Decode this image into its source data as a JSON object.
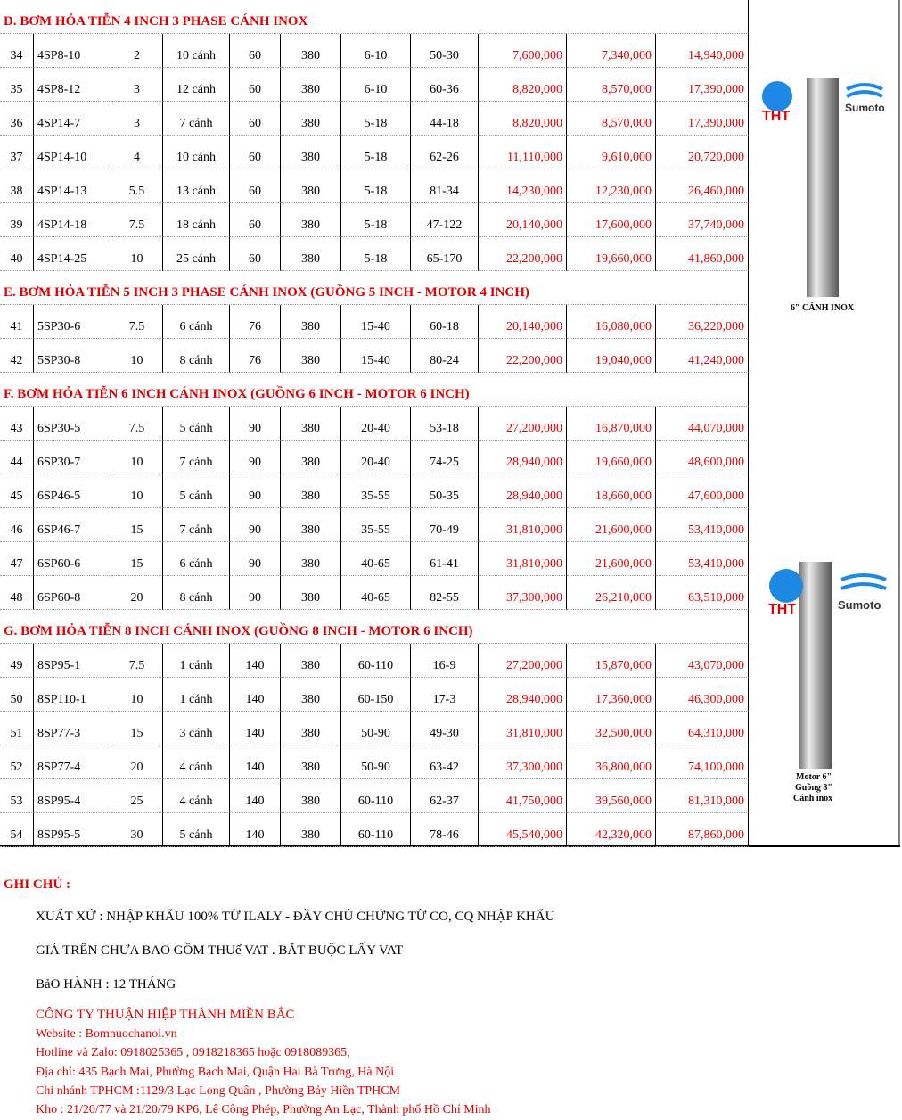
{
  "sections": [
    {
      "title": "D. BƠM HỎA TIỄN 4 INCH 3 PHASE CÁNH INOX",
      "rows": [
        [
          "34",
          "4SP8-10",
          "2",
          "10 cánh",
          "60",
          "380",
          "6-10",
          "50-30",
          "7,600,000",
          "7,340,000",
          "14,940,000"
        ],
        [
          "35",
          "4SP8-12",
          "3",
          "12 cánh",
          "60",
          "380",
          "6-10",
          "60-36",
          "8,820,000",
          "8,570,000",
          "17,390,000"
        ],
        [
          "36",
          "4SP14-7",
          "3",
          "7 cánh",
          "60",
          "380",
          "5-18",
          "44-18",
          "8,820,000",
          "8,570,000",
          "17,390,000"
        ],
        [
          "37",
          "4SP14-10",
          "4",
          "10 cánh",
          "60",
          "380",
          "5-18",
          "62-26",
          "11,110,000",
          "9,610,000",
          "20,720,000"
        ],
        [
          "38",
          "4SP14-13",
          "5.5",
          "13 cánh",
          "60",
          "380",
          "5-18",
          "81-34",
          "14,230,000",
          "12,230,000",
          "26,460,000"
        ],
        [
          "39",
          "4SP14-18",
          "7.5",
          "18 cánh",
          "60",
          "380",
          "5-18",
          "47-122",
          "20,140,000",
          "17,600,000",
          "37,740,000"
        ],
        [
          "40",
          "4SP14-25",
          "10",
          "25 cánh",
          "60",
          "380",
          "5-18",
          "65-170",
          "22,200,000",
          "19,660,000",
          "41,860,000"
        ]
      ]
    },
    {
      "title": "E. BƠM HỎA TIỄN 5 INCH 3 PHASE CÁNH INOX (GUỒNG 5 INCH - MOTOR 4 INCH)",
      "rows": [
        [
          "41",
          "5SP30-6",
          "7.5",
          "6 cánh",
          "76",
          "380",
          "15-40",
          "60-18",
          "20,140,000",
          "16,080,000",
          "36,220,000"
        ],
        [
          "42",
          "5SP30-8",
          "10",
          "8 cánh",
          "76",
          "380",
          "15-40",
          "80-24",
          "22,200,000",
          "19,040,000",
          "41,240,000"
        ]
      ]
    },
    {
      "title": "F. BƠM HỎA TIỄN 6 INCH CÁNH INOX (GUỒNG 6 INCH - MOTOR 6 INCH)",
      "rows": [
        [
          "43",
          "6SP30-5",
          "7.5",
          "5 cánh",
          "90",
          "380",
          "20-40",
          "53-18",
          "27,200,000",
          "16,870,000",
          "44,070,000"
        ],
        [
          "44",
          "6SP30-7",
          "10",
          "7 cánh",
          "90",
          "380",
          "20-40",
          "74-25",
          "28,940,000",
          "19,660,000",
          "48,600,000"
        ],
        [
          "45",
          "6SP46-5",
          "10",
          "5 cánh",
          "90",
          "380",
          "35-55",
          "50-35",
          "28,940,000",
          "18,660,000",
          "47,600,000"
        ],
        [
          "46",
          "6SP46-7",
          "15",
          "7 cánh",
          "90",
          "380",
          "35-55",
          "70-49",
          "31,810,000",
          "21,600,000",
          "53,410,000"
        ],
        [
          "47",
          "6SP60-6",
          "15",
          "6 cánh",
          "90",
          "380",
          "40-65",
          "61-41",
          "31,810,000",
          "21,600,000",
          "53,410,000"
        ],
        [
          "48",
          "6SP60-8",
          "20",
          "8 cánh",
          "90",
          "380",
          "40-65",
          "82-55",
          "37,300,000",
          "26,210,000",
          "63,510,000"
        ]
      ]
    },
    {
      "title": "G. BƠM HỎA TIỄN 8 INCH CÁNH INOX (GUỒNG 8 INCH - MOTOR 6 INCH)",
      "rows": [
        [
          "49",
          "8SP95-1",
          "7.5",
          "1 cánh",
          "140",
          "380",
          "60-110",
          "16-9",
          "27,200,000",
          "15,870,000",
          "43,070,000"
        ],
        [
          "50",
          "8SP110-1",
          "10",
          "1 cánh",
          "140",
          "380",
          "60-150",
          "17-3",
          "28,940,000",
          "17,360,000",
          "46,300,000"
        ],
        [
          "51",
          "8SP77-3",
          "15",
          "3 cánh",
          "140",
          "380",
          "50-90",
          "49-30",
          "31,810,000",
          "32,500,000",
          "64,310,000"
        ],
        [
          "52",
          "8SP77-4",
          "20",
          "4 cánh",
          "140",
          "380",
          "50-90",
          "63-42",
          "37,300,000",
          "36,800,000",
          "74,100,000"
        ],
        [
          "53",
          "8SP95-4",
          "25",
          "4 cánh",
          "140",
          "380",
          "60-110",
          "62-37",
          "41,750,000",
          "39,560,000",
          "81,310,000"
        ],
        [
          "54",
          "8SP95-5",
          "30",
          "5 cánh",
          "140",
          "380",
          "60-110",
          "78-46",
          "45,540,000",
          "42,320,000",
          "87,860,000"
        ]
      ]
    }
  ],
  "images": [
    {
      "brand1": "THT",
      "brand2": "Sumoto",
      "caption": [
        "6\" CÁNH INOX"
      ]
    },
    {
      "brand1": "THT",
      "brand2": "Sumoto",
      "caption": [
        "Motor 6\"",
        "Guồng 8\"",
        "Cánh inox"
      ]
    }
  ],
  "notes": {
    "heading": "GHI CHÚ :",
    "lines": [
      "XUẤT XỨ : NHẬP KHẨU 100% TỪ ILALY - ĐẦY CHỦ CHỨNG TỪ CO, CQ NHẬP KHẨU",
      "GIÁ TRÊN CHƯA BAO GỒM THUế VAT  .  BẮT BUỘC LẤY VAT",
      "BảO HÀNH : 12 THÁNG"
    ],
    "company": "CÔNG TY THUẬN HIỆP THÀNH MIỀN BẮC",
    "contacts": [
      "Website : Bomnuochanoi.vn",
      " Hotline và Zalo: 0918025365 , 0918218365 hoặc 0918089365,",
      "Địa chỉ: 435 Bạch Mai, Phường Bạch Mai, Quận Hai Bà Trưng, Hà Nội",
      "Chi nhánh TPHCM :1129/3 Lạc Long Quân , Phường Bảy Hiền TPHCM",
      "Kho : 21/20/77 và 21/20/79 KP6, Lê Công Phép, Phường An Lạc, Thành phố Hồ Chí Minh"
    ]
  }
}
